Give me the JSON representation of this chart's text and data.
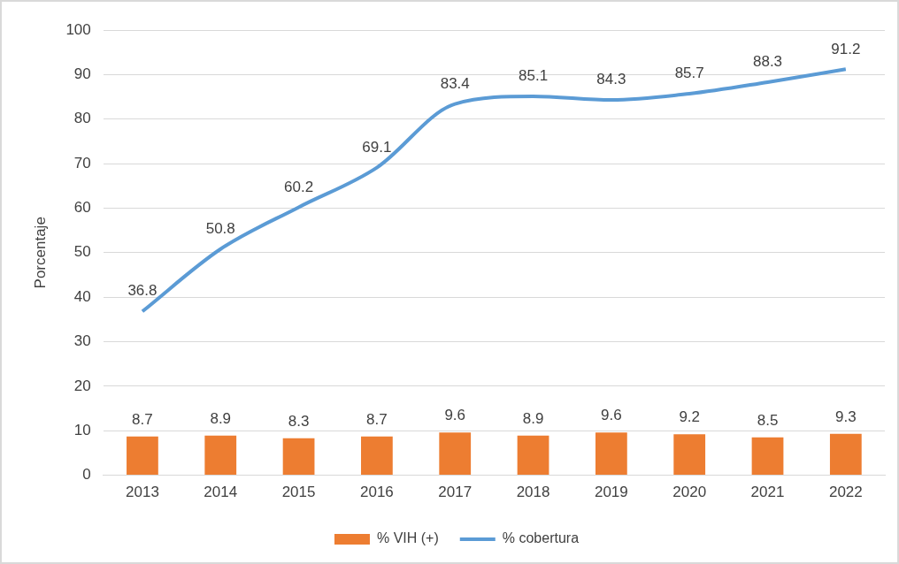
{
  "chart_data": {
    "type": "bar",
    "ylabel": "Porcentaje",
    "categories": [
      "2013",
      "2014",
      "2015",
      "2016",
      "2017",
      "2018",
      "2019",
      "2020",
      "2021",
      "2022"
    ],
    "series": [
      {
        "name": "% VIH (+)",
        "color": "#ed7d31",
        "values": [
          8.7,
          8.9,
          8.3,
          8.7,
          9.6,
          8.9,
          9.6,
          9.2,
          8.5,
          9.3
        ]
      },
      {
        "name": "% cobertura",
        "type": "line",
        "color": "#5b9bd5",
        "values": [
          36.8,
          50.8,
          60.2,
          69.1,
          83.4,
          85.1,
          84.3,
          85.7,
          88.3,
          91.2
        ]
      }
    ],
    "ylim": [
      0,
      100
    ],
    "yticks": [
      0,
      10,
      20,
      30,
      40,
      50,
      60,
      70,
      80,
      90,
      100
    ],
    "grid": "y",
    "legend": "bottom",
    "data_labels": true,
    "marker": "none"
  }
}
